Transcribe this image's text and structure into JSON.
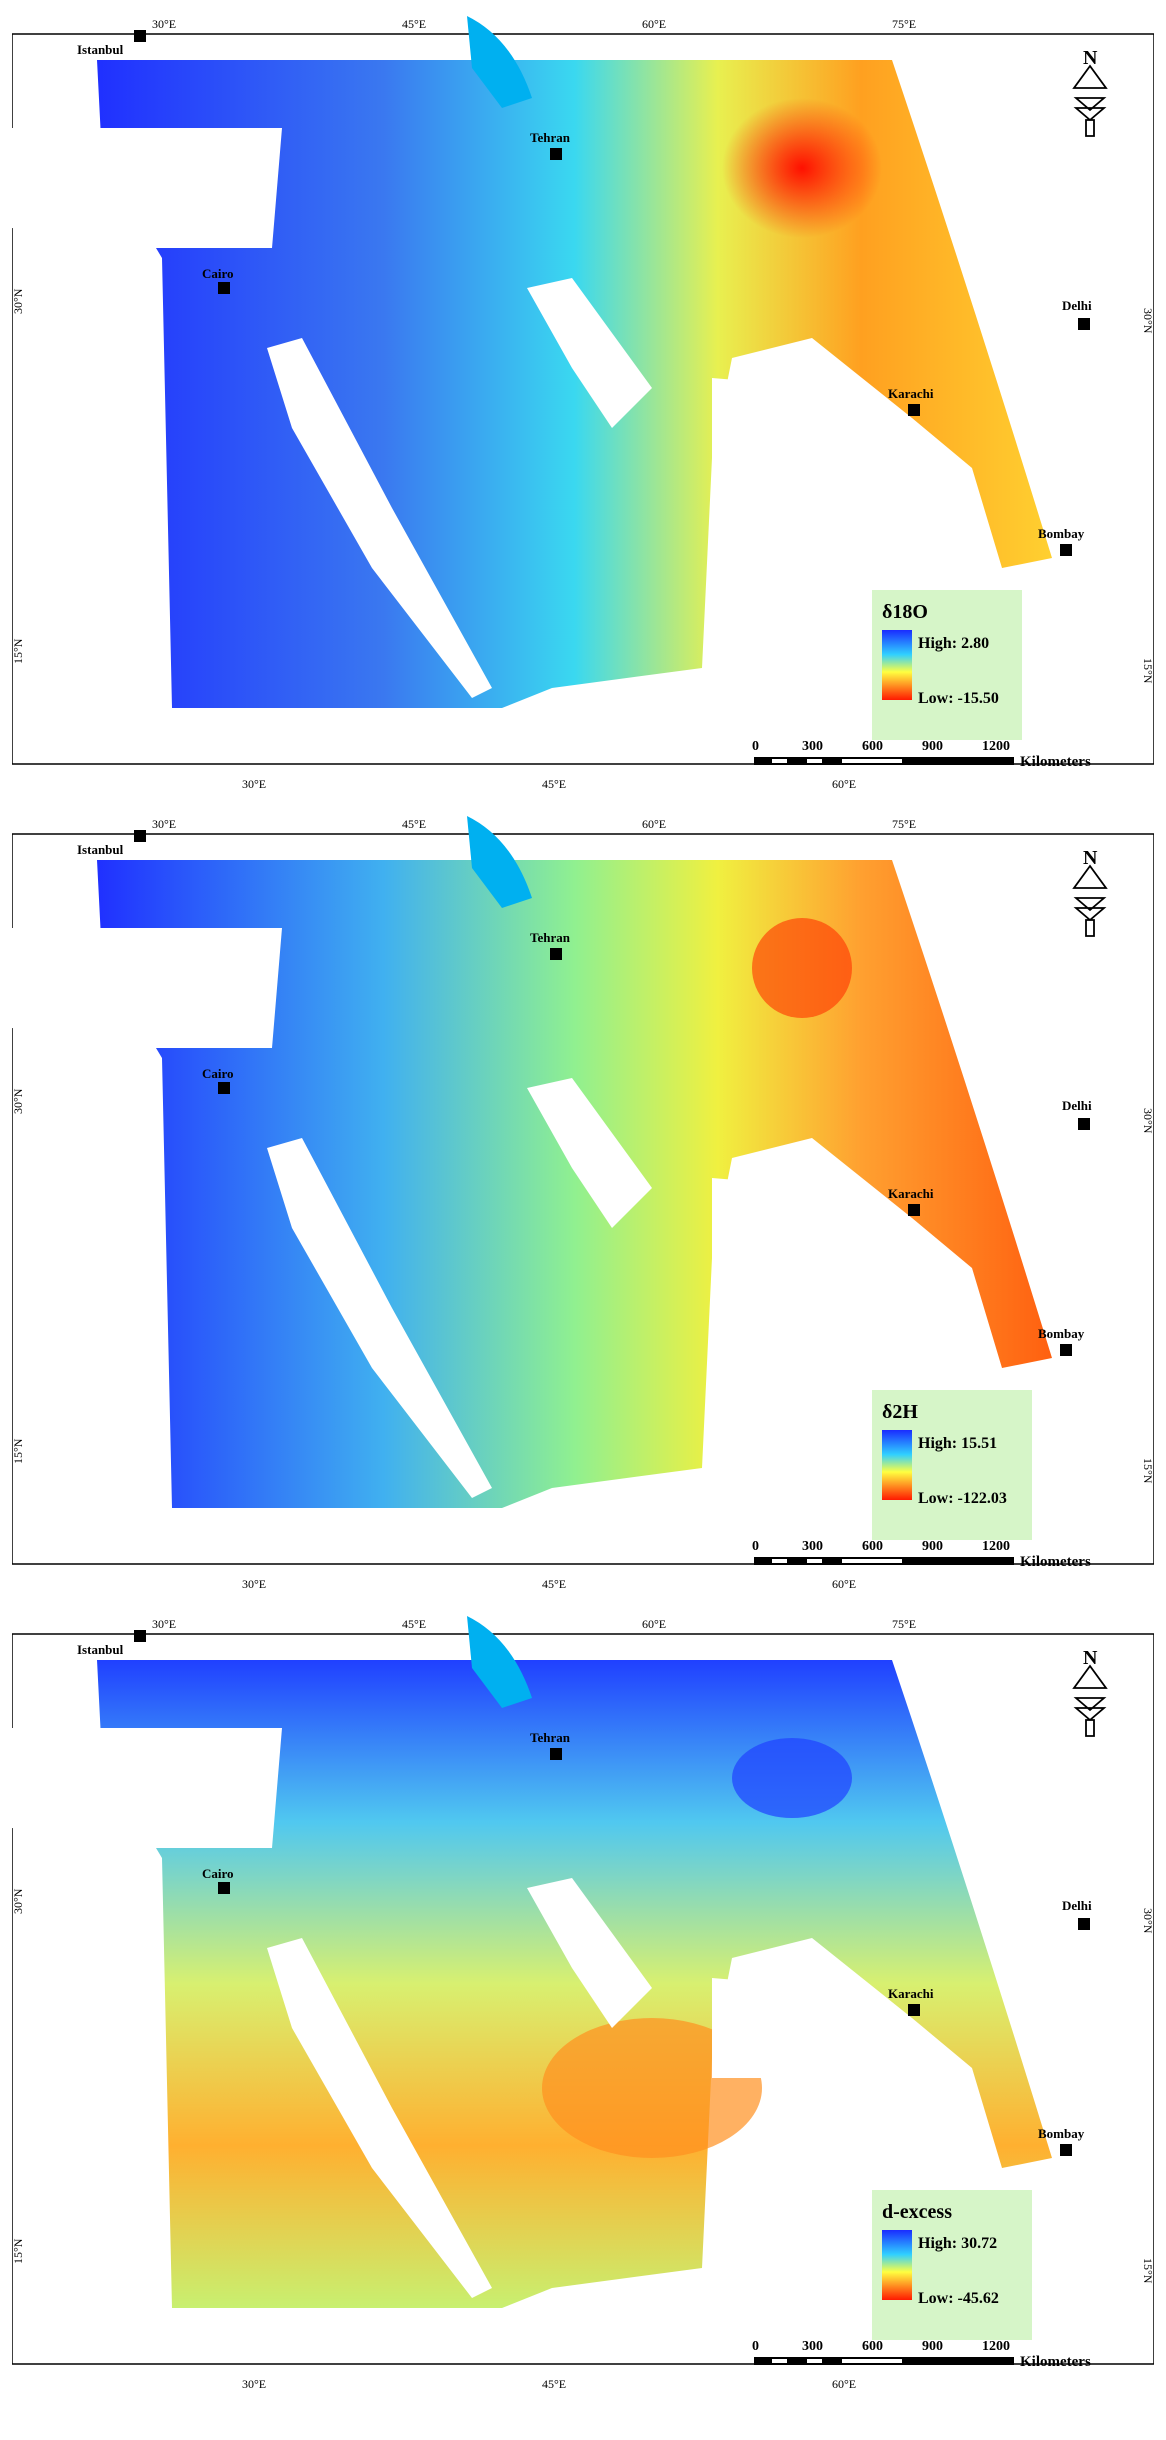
{
  "panels": [
    {
      "id": "d18o",
      "legend": {
        "title": "δ18O",
        "high": "High: 2.80",
        "low": "Low: -15.50"
      },
      "top_lon_ticks": [
        "30°E",
        "45°E",
        "60°E",
        "75°E"
      ],
      "bottom_lon_ticks": [
        "30°E",
        "45°E",
        "60°E"
      ],
      "lat_ticks": [
        "30°N",
        "15°N"
      ]
    },
    {
      "id": "d2h",
      "legend": {
        "title": "δ2H",
        "high": "High: 15.51",
        "low": "Low: -122.03"
      },
      "top_lon_ticks": [
        "30°E",
        "45°E",
        "60°E",
        "75°E"
      ],
      "bottom_lon_ticks": [
        "30°E",
        "45°E",
        "60°E"
      ],
      "lat_ticks": [
        "30°N",
        "15°N"
      ]
    },
    {
      "id": "dexcess",
      "legend": {
        "title": "d-excess",
        "high": "High: 30.72",
        "low": "Low: -45.62"
      },
      "top_lon_ticks": [
        "30°E",
        "45°E",
        "60°E",
        "75°E"
      ],
      "bottom_lon_ticks": [
        "30°E",
        "45°E",
        "60°E"
      ],
      "lat_ticks": [
        "30°N",
        "15°N"
      ]
    }
  ],
  "cities": [
    "Istanbul",
    "Tehran",
    "Cairo",
    "Delhi",
    "Karachi",
    "Bombay"
  ],
  "scale_bar": {
    "labels": [
      "0",
      "300",
      "600",
      "900",
      "1200"
    ],
    "unit": "Kilometers"
  },
  "north_arrow": {
    "label": "N"
  },
  "colors": {
    "high": "#1a2cff",
    "mid": "#ffff40",
    "low": "#ff1a00",
    "water": "#00b0f0",
    "legend_bg": "#d6f5c8",
    "frame": "#000000"
  }
}
